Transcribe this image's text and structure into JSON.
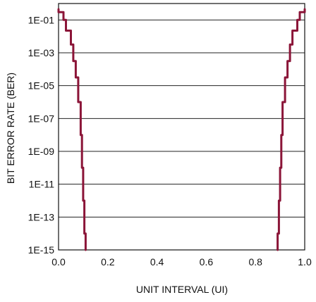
{
  "chart_data": {
    "type": "line",
    "title": "",
    "xlabel": "UNIT INTERVAL (UI)",
    "ylabel": "BIT ERROR RATE (BER)",
    "xlim": [
      0.0,
      1.0
    ],
    "ylim": [
      1e-15,
      1.0
    ],
    "y_scale": "log",
    "grid": "horizontal",
    "legend": "none",
    "x_ticks": [
      "0.0",
      "0.2",
      "0.4",
      "0.6",
      "0.8",
      "1.0"
    ],
    "y_ticks": [
      "1E-15",
      "1E-13",
      "1E-11",
      "1E-09",
      "1E-07",
      "1E-05",
      "1E-03",
      "1E-01"
    ],
    "line_color": "#8b1538",
    "series": [
      {
        "points": [
          [
            0.0,
            0.45
          ],
          [
            0.02,
            0.2
          ],
          [
            0.03,
            0.05
          ],
          [
            0.05,
            0.01
          ],
          [
            0.06,
            0.001
          ],
          [
            0.07,
            0.0001
          ],
          [
            0.08,
            1e-05
          ],
          [
            0.09,
            1e-07
          ],
          [
            0.095,
            1e-09
          ],
          [
            0.1,
            1e-11
          ],
          [
            0.105,
            1e-13
          ],
          [
            0.11,
            1e-15
          ]
        ]
      },
      {
        "points": [
          [
            0.89,
            1e-15
          ],
          [
            0.895,
            1e-13
          ],
          [
            0.9,
            1e-11
          ],
          [
            0.905,
            1e-09
          ],
          [
            0.91,
            1e-07
          ],
          [
            0.92,
            1e-05
          ],
          [
            0.93,
            0.0001
          ],
          [
            0.94,
            0.001
          ],
          [
            0.95,
            0.01
          ],
          [
            0.97,
            0.05
          ],
          [
            0.98,
            0.2
          ],
          [
            1.0,
            0.45
          ]
        ]
      }
    ]
  }
}
